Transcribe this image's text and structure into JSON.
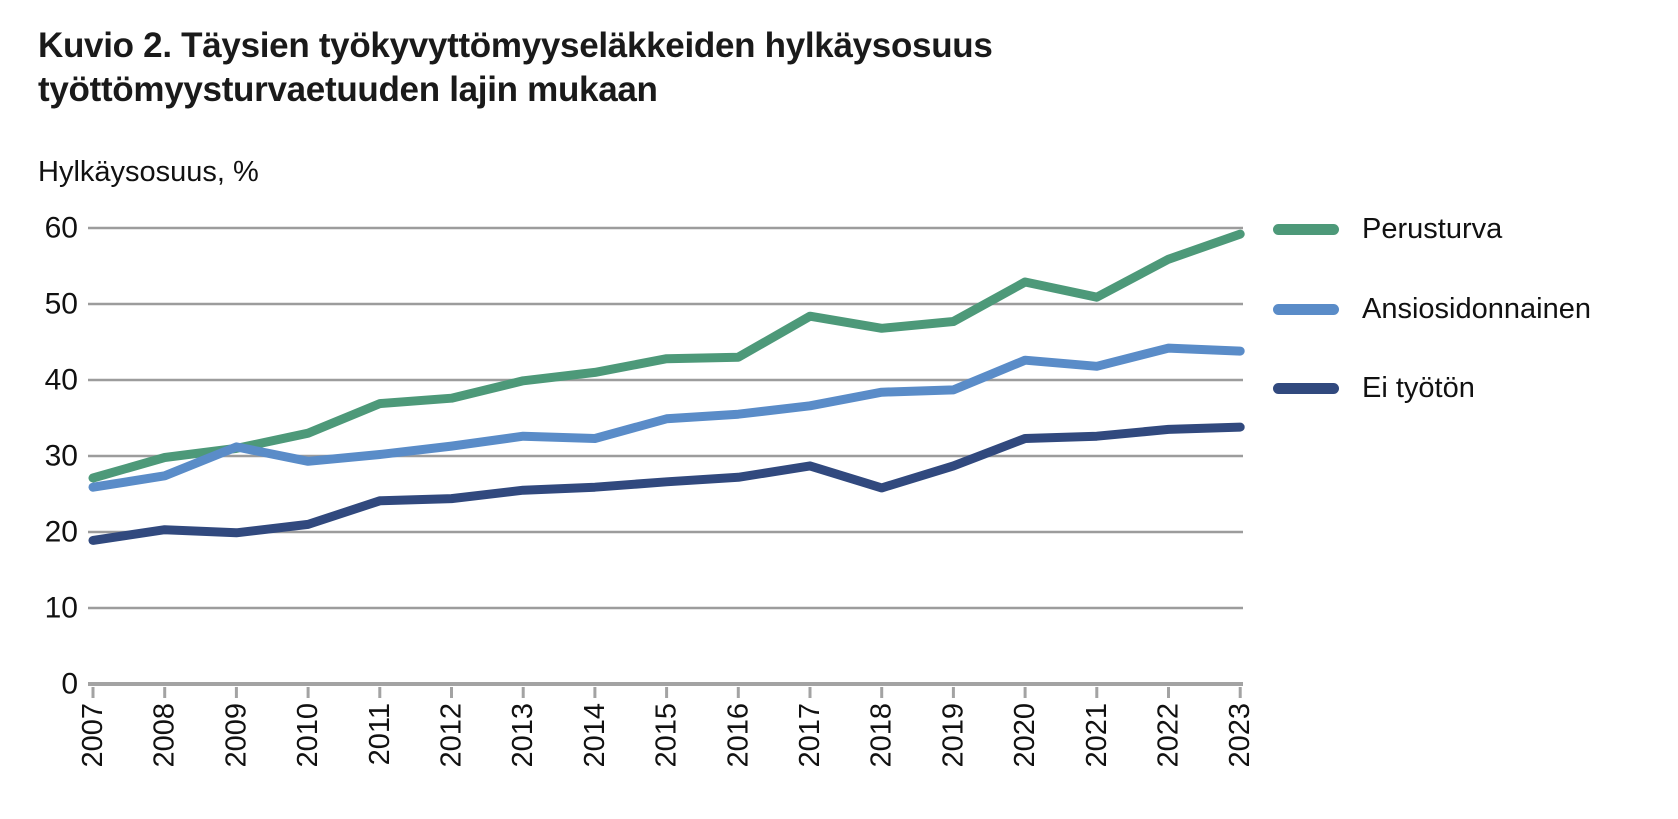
{
  "title": "Kuvio 2. Täysien työkyvyttömyyseläkkeiden hylkäysosuus työttömyysturvaetuuden lajin mukaan",
  "y_axis_title": "Hylkäysosuus, %",
  "colors": {
    "gridline": "#9c9c9c",
    "axis": "#a3a3a3",
    "label_text": "#111111",
    "title_text": "#1a1a1a"
  },
  "chart_data": {
    "type": "line",
    "title": "Kuvio 2. Täysien työkyvyttömyyseläkkeiden hylkäysosuus työttömyysturvaetuuden lajin mukaan",
    "ylabel": "Hylkäysosuus, %",
    "xlabel": "",
    "ylim": [
      0,
      60
    ],
    "yticks": [
      0,
      10,
      20,
      30,
      40,
      50,
      60
    ],
    "grid": true,
    "legend_position": "right",
    "x": [
      2007,
      2008,
      2009,
      2010,
      2011,
      2012,
      2013,
      2014,
      2015,
      2016,
      2017,
      2018,
      2019,
      2020,
      2021,
      2022,
      2023
    ],
    "series": [
      {
        "name": "Perusturva",
        "color": "#4d9979",
        "values": [
          27.1,
          29.8,
          31.0,
          33.0,
          36.9,
          37.6,
          39.9,
          41.0,
          42.8,
          43.0,
          48.4,
          46.8,
          47.7,
          52.9,
          50.9,
          55.9,
          59.2
        ]
      },
      {
        "name": "Ansiosidonnainen",
        "color": "#5a8cc8",
        "values": [
          25.9,
          27.4,
          31.2,
          29.3,
          30.2,
          31.3,
          32.6,
          32.3,
          34.9,
          35.5,
          36.6,
          38.4,
          38.7,
          42.6,
          41.8,
          44.2,
          43.8
        ]
      },
      {
        "name": "Ei työtön",
        "color": "#31497e",
        "values": [
          18.9,
          20.3,
          19.9,
          21.0,
          24.1,
          24.4,
          25.5,
          25.9,
          26.6,
          27.2,
          28.7,
          25.8,
          28.7,
          32.3,
          32.6,
          33.5,
          33.8
        ]
      }
    ]
  }
}
